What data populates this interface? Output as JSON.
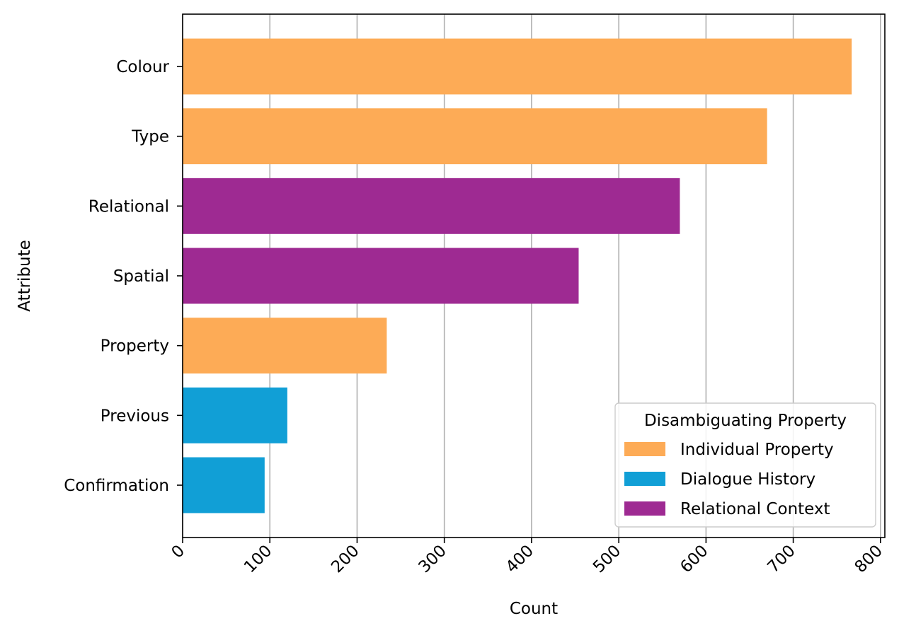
{
  "chart_data": {
    "type": "bar",
    "orientation": "horizontal",
    "title": "",
    "xlabel": "Count",
    "ylabel": "Attribute",
    "xlim": [
      0,
      805
    ],
    "xticks": [
      0,
      100,
      200,
      300,
      400,
      500,
      600,
      700,
      800
    ],
    "xtick_labels": [
      "0",
      "100",
      "200",
      "300",
      "400",
      "500",
      "600",
      "700",
      "800"
    ],
    "grid": "x",
    "categories": [
      "Colour",
      "Type",
      "Relational",
      "Spatial",
      "Property",
      "Previous",
      "Confirmation"
    ],
    "values": [
      767,
      670,
      570,
      454,
      234,
      120,
      94
    ],
    "groups": [
      "Individual Property",
      "Individual Property",
      "Relational Context",
      "Relational Context",
      "Individual Property",
      "Dialogue History",
      "Dialogue History"
    ],
    "legend": {
      "title": "Disambiguating Property",
      "placement": "lower right",
      "entries": [
        "Individual Property",
        "Dialogue History",
        "Relational Context"
      ]
    },
    "colors": {
      "Individual Property": "#fdab56",
      "Dialogue History": "#119fd6",
      "Relational Context": "#9e2a92"
    }
  }
}
